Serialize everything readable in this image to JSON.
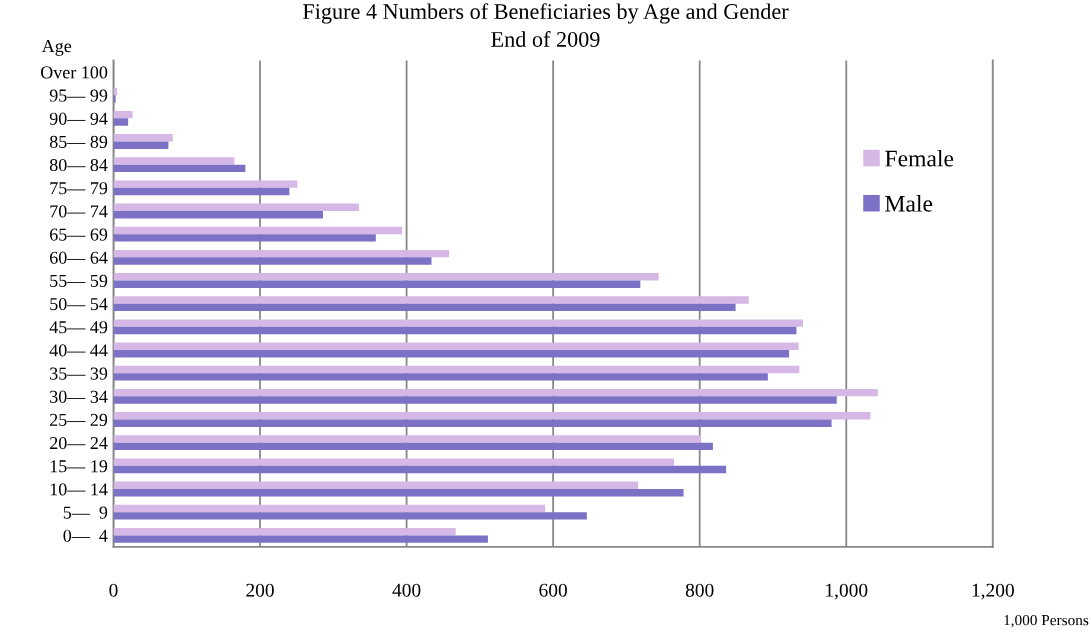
{
  "chart_data": {
    "type": "bar",
    "orientation": "horizontal",
    "title": "Figure 4 Numbers of Beneficiaries by Age and Gender",
    "subtitle": "End of 2009",
    "ylabel": "Age",
    "xlabel": "1,000 Persons",
    "categories": [
      "Over 100",
      "95— 99",
      "90— 94",
      "85— 89",
      "80— 84",
      "75— 79",
      "70— 74",
      "65— 69",
      "60— 64",
      "55— 59",
      "50— 54",
      "45— 49",
      "40— 44",
      "35— 39",
      "30— 34",
      "25— 29",
      "20— 24",
      "15— 19",
      "10— 14",
      "5—  9",
      "0—  4"
    ],
    "series": [
      {
        "name": "Female",
        "color": "#d5b8e6",
        "values": [
          null,
          5,
          26,
          81,
          165,
          251,
          335,
          394,
          458,
          744,
          867,
          941,
          935,
          936,
          1043,
          1033,
          802,
          765,
          716,
          589,
          467
        ]
      },
      {
        "name": "Male",
        "color": "#7b72c6",
        "values": [
          null,
          3,
          20,
          75,
          180,
          240,
          286,
          358,
          434,
          719,
          849,
          932,
          922,
          893,
          987,
          980,
          818,
          836,
          778,
          646,
          511
        ]
      }
    ],
    "xlim": [
      0,
      1200
    ],
    "xticks": [
      0,
      {
        "value": 200,
        "label": "200"
      },
      {
        "value": 400,
        "label": "400"
      },
      {
        "value": 600,
        "label": "600"
      },
      {
        "value": 800,
        "label": "800"
      },
      {
        "value": 1000,
        "label": "1,000"
      },
      {
        "value": 1200,
        "label": "1,200"
      }
    ],
    "grid": "x",
    "legend": "right"
  }
}
